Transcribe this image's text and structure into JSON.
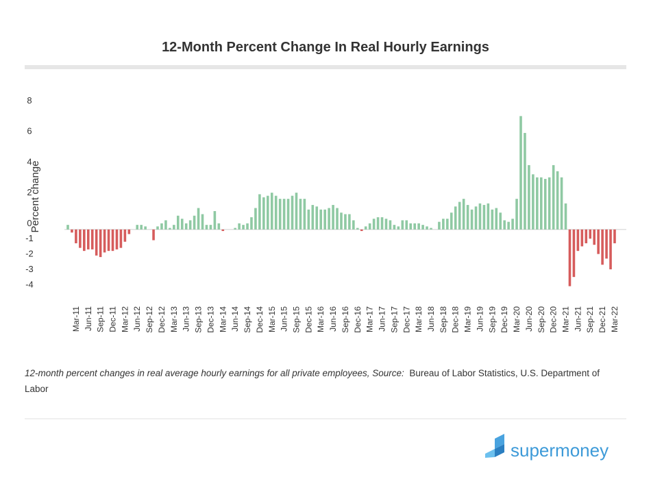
{
  "chart_data": {
    "type": "bar",
    "title": "12-Month Percent Change In Real Hourly Earnings",
    "y_label": "Percent change",
    "categories": [
      null,
      null,
      "Mar-11",
      null,
      null,
      "Jun-11",
      null,
      null,
      "Sep-11",
      null,
      null,
      "Dec-11",
      null,
      null,
      "Mar-12",
      null,
      null,
      "Jun-12",
      null,
      null,
      "Sep-12",
      null,
      null,
      "Dec-12",
      null,
      null,
      "Mar-13",
      null,
      null,
      "Jun-13",
      null,
      null,
      "Sep-13",
      null,
      null,
      "Dec-13",
      null,
      null,
      "Mar-14",
      null,
      null,
      "Jun-14",
      null,
      null,
      "Sep-14",
      null,
      null,
      "Dec-14",
      null,
      null,
      "Mar-15",
      null,
      null,
      "Jun-15",
      null,
      null,
      "Sep-15",
      null,
      null,
      "Dec-15",
      null,
      null,
      "Mar-16",
      null,
      null,
      "Jun-16",
      null,
      null,
      "Sep-16",
      null,
      null,
      "Dec-16",
      null,
      null,
      "Mar-17",
      null,
      null,
      "Jun-17",
      null,
      null,
      "Sep-17",
      null,
      null,
      "Dec-17",
      null,
      null,
      "Mar-18",
      null,
      null,
      "Jun-18",
      null,
      null,
      "Sep-18",
      null,
      null,
      "Dec-18",
      null,
      null,
      "Mar-19",
      null,
      null,
      "Jun-19",
      null,
      null,
      "Sep-19",
      null,
      null,
      "Dec-19",
      null,
      null,
      "Mar-20",
      null,
      null,
      "Jun-20",
      null,
      null,
      "Sep-20",
      null,
      null,
      "Dec-20",
      null,
      null,
      "Mar-21",
      null,
      null,
      "Jun-21",
      null,
      null,
      "Sep-21",
      null,
      null,
      "Dec-21",
      null,
      null,
      "Mar-22"
    ],
    "values": [
      0.3,
      -0.2,
      -0.9,
      -1.2,
      -1.4,
      -1.3,
      -1.3,
      -1.7,
      -1.8,
      -1.5,
      -1.4,
      -1.4,
      -1.3,
      -1.2,
      -0.8,
      -0.3,
      0,
      0.3,
      0.3,
      0.2,
      0,
      -0.7,
      0.2,
      0.4,
      0.6,
      0.1,
      0.3,
      0.9,
      0.7,
      0.4,
      0.6,
      0.9,
      1.4,
      1.0,
      0.3,
      0.3,
      1.2,
      0.4,
      -0.1,
      0,
      0,
      0.1,
      0.4,
      0.3,
      0.4,
      0.8,
      1.4,
      2.3,
      2.1,
      2.2,
      2.4,
      2.2,
      2.0,
      2.0,
      2.0,
      2.2,
      2.4,
      2.0,
      2.0,
      1.3,
      1.6,
      1.5,
      1.3,
      1.3,
      1.4,
      1.6,
      1.4,
      1.1,
      1.0,
      1.0,
      0.6,
      0.1,
      -0.1,
      0.2,
      0.4,
      0.7,
      0.8,
      0.8,
      0.7,
      0.6,
      0.3,
      0.2,
      0.6,
      0.6,
      0.4,
      0.4,
      0.4,
      0.3,
      0.2,
      0.1,
      0,
      0.5,
      0.7,
      0.7,
      1.1,
      1.5,
      1.8,
      2.0,
      1.6,
      1.3,
      1.5,
      1.7,
      1.6,
      1.7,
      1.3,
      1.4,
      1.1,
      0.6,
      0.5,
      0.7,
      2.0,
      7.4,
      6.3,
      4.2,
      3.6,
      3.4,
      3.4,
      3.3,
      3.4,
      4.2,
      3.8,
      3.4,
      1.7,
      -3.7,
      -3.1,
      -1.4,
      -1.1,
      -0.9,
      -0.6,
      -1.0,
      -1.6,
      -2.3,
      -1.9,
      -2.6,
      -0.9
    ],
    "positive_color": "#8fc9a3",
    "negative_color": "#d65c5c",
    "ylim": [
      -4.3,
      8.4
    ],
    "yticks": [
      8,
      6,
      4,
      2,
      0,
      -1,
      -2,
      -3,
      -4
    ],
    "grid": false,
    "caption_italic": "12-month percent changes in real average hourly earnings for all private employees, Source:",
    "caption_source": "Bureau of Labor Statistics, U.S. Department of Labor",
    "logo_text": "supermoney"
  }
}
